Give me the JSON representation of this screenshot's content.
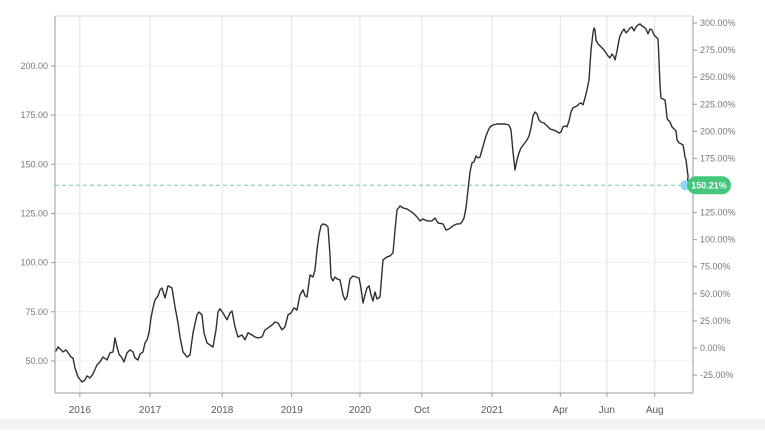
{
  "chart_data": {
    "type": "line",
    "title": "",
    "x_axis": {
      "ticks": [
        {
          "label": "2016",
          "f": 0.039
        },
        {
          "label": "2017",
          "f": 0.149
        },
        {
          "label": "2018",
          "f": 0.262
        },
        {
          "label": "2019",
          "f": 0.371
        },
        {
          "label": "2020",
          "f": 0.478
        },
        {
          "label": "Oct",
          "f": 0.575
        },
        {
          "label": "2021",
          "f": 0.685
        },
        {
          "label": "Apr",
          "f": 0.792
        },
        {
          "label": "Jun",
          "f": 0.865
        },
        {
          "label": "Aug",
          "f": 0.94
        }
      ]
    },
    "y_axis_left": {
      "unit": "price",
      "range": [
        33.7,
        225.4
      ],
      "ticks": [
        {
          "label": "200.00",
          "value": 200
        },
        {
          "label": "175.00",
          "value": 175
        },
        {
          "label": "150.00",
          "value": 150
        },
        {
          "label": "125.00",
          "value": 125
        },
        {
          "label": "100.00",
          "value": 100
        },
        {
          "label": "75.00",
          "value": 75
        },
        {
          "label": "50.00",
          "value": 50
        }
      ]
    },
    "y_axis_right": {
      "unit": "percent",
      "range": [
        -41.6,
        306.5
      ],
      "ticks": [
        {
          "label": "300.00%",
          "value": 300
        },
        {
          "label": "275.00%",
          "value": 275
        },
        {
          "label": "250.00%",
          "value": 250
        },
        {
          "label": "225.00%",
          "value": 225
        },
        {
          "label": "200.00%",
          "value": 200
        },
        {
          "label": "175.00%",
          "value": 175
        },
        {
          "label": "125.00%",
          "value": 125
        },
        {
          "label": "100.00%",
          "value": 100
        },
        {
          "label": "75.00%",
          "value": 75
        },
        {
          "label": "50.00%",
          "value": 50
        },
        {
          "label": "25.00%",
          "value": 25
        },
        {
          "label": "0.00%",
          "value": 0
        },
        {
          "label": "-25.00%",
          "value": -25
        }
      ]
    },
    "current": {
      "label": "150.21%",
      "pct": 150.21,
      "price": 139.3,
      "f": 0.988
    },
    "grid": true,
    "legend": false,
    "colors": {
      "line": "#2f2f2f",
      "grid_h": "#efefef",
      "grid_v": "#e2e2e2",
      "axis": "#9b9b9b",
      "axis_top": "#d8d8d8",
      "tick_label": "#787878",
      "x_tick_label": "#5a5a5a",
      "baseline": "#8ad3bd",
      "badge_bg": "#44c67c",
      "badge_text": "#ffffff",
      "dot": "#8bd8f4",
      "background": "#ffffff",
      "page_band": "#f3f3f3"
    },
    "series": [
      {
        "name": "price",
        "points": [
          [
            0.0016,
            55.1
          ],
          [
            0.0047,
            57.1
          ],
          [
            0.0094,
            55.6
          ],
          [
            0.0125,
            54.6
          ],
          [
            0.0172,
            55.6
          ],
          [
            0.0219,
            53.5
          ],
          [
            0.0251,
            52.0
          ],
          [
            0.0282,
            51.5
          ],
          [
            0.0313,
            46.4
          ],
          [
            0.036,
            41.9
          ],
          [
            0.0423,
            39.3
          ],
          [
            0.047,
            40.3
          ],
          [
            0.0502,
            42.4
          ],
          [
            0.0549,
            41.4
          ],
          [
            0.0596,
            43.4
          ],
          [
            0.0658,
            48.0
          ],
          [
            0.0705,
            49.5
          ],
          [
            0.0752,
            52.0
          ],
          [
            0.0815,
            50.5
          ],
          [
            0.0862,
            54.1
          ],
          [
            0.0909,
            54.6
          ],
          [
            0.094,
            61.7
          ],
          [
            0.0972,
            57.1
          ],
          [
            0.1003,
            53.5
          ],
          [
            0.105,
            51.5
          ],
          [
            0.1082,
            49.5
          ],
          [
            0.1129,
            54.1
          ],
          [
            0.1176,
            55.6
          ],
          [
            0.1223,
            54.6
          ],
          [
            0.1254,
            51.5
          ],
          [
            0.1301,
            50.5
          ],
          [
            0.1332,
            53.5
          ],
          [
            0.1379,
            54.6
          ],
          [
            0.1411,
            59.2
          ],
          [
            0.1442,
            60.7
          ],
          [
            0.1473,
            64.3
          ],
          [
            0.1505,
            71.9
          ],
          [
            0.1536,
            77.0
          ],
          [
            0.1567,
            81.0
          ],
          [
            0.1614,
            83.1
          ],
          [
            0.1646,
            86.1
          ],
          [
            0.1677,
            87.1
          ],
          [
            0.1724,
            82.0
          ],
          [
            0.1771,
            88.2
          ],
          [
            0.1834,
            87.1
          ],
          [
            0.1881,
            77.5
          ],
          [
            0.1928,
            69.3
          ],
          [
            0.1959,
            62.2
          ],
          [
            0.2006,
            54.6
          ],
          [
            0.2069,
            52.0
          ],
          [
            0.2116,
            53.0
          ],
          [
            0.2163,
            64.3
          ],
          [
            0.2226,
            73.4
          ],
          [
            0.2257,
            74.9
          ],
          [
            0.2304,
            73.4
          ],
          [
            0.2335,
            64.3
          ],
          [
            0.2382,
            59.2
          ],
          [
            0.2429,
            58.1
          ],
          [
            0.2476,
            57.1
          ],
          [
            0.2523,
            65.8
          ],
          [
            0.2555,
            74.9
          ],
          [
            0.2586,
            76.5
          ],
          [
            0.2633,
            74.4
          ],
          [
            0.2696,
            70.9
          ],
          [
            0.2743,
            74.4
          ],
          [
            0.2774,
            75.4
          ],
          [
            0.2821,
            67.3
          ],
          [
            0.2868,
            62.2
          ],
          [
            0.2931,
            63.2
          ],
          [
            0.2978,
            60.7
          ],
          [
            0.3025,
            64.3
          ],
          [
            0.3088,
            63.2
          ],
          [
            0.3135,
            62.2
          ],
          [
            0.3182,
            61.7
          ],
          [
            0.3245,
            62.2
          ],
          [
            0.3292,
            65.8
          ],
          [
            0.3339,
            66.8
          ],
          [
            0.3401,
            68.3
          ],
          [
            0.3448,
            69.8
          ],
          [
            0.3495,
            69.3
          ],
          [
            0.3558,
            65.8
          ],
          [
            0.3605,
            67.3
          ],
          [
            0.3652,
            73.4
          ],
          [
            0.3699,
            74.4
          ],
          [
            0.3746,
            77.0
          ],
          [
            0.3793,
            75.9
          ],
          [
            0.384,
            83.6
          ],
          [
            0.3887,
            86.1
          ],
          [
            0.3918,
            83.1
          ],
          [
            0.395,
            82.5
          ],
          [
            0.3997,
            93.7
          ],
          [
            0.4044,
            92.7
          ],
          [
            0.4075,
            96.3
          ],
          [
            0.4107,
            106.4
          ],
          [
            0.4138,
            114.1
          ],
          [
            0.4169,
            118.7
          ],
          [
            0.4201,
            119.7
          ],
          [
            0.4248,
            119.2
          ],
          [
            0.4279,
            118.1
          ],
          [
            0.431,
            103.9
          ],
          [
            0.4326,
            92.7
          ],
          [
            0.4358,
            90.7
          ],
          [
            0.4389,
            92.7
          ],
          [
            0.442,
            91.7
          ],
          [
            0.4467,
            91.2
          ],
          [
            0.4514,
            83.6
          ],
          [
            0.4545,
            81.0
          ],
          [
            0.4577,
            82.5
          ],
          [
            0.4624,
            91.7
          ],
          [
            0.4671,
            93.2
          ],
          [
            0.4718,
            92.7
          ],
          [
            0.4765,
            92.2
          ],
          [
            0.4796,
            87.1
          ],
          [
            0.4828,
            79.5
          ],
          [
            0.4859,
            83.6
          ],
          [
            0.489,
            87.1
          ],
          [
            0.4922,
            88.2
          ],
          [
            0.4953,
            83.6
          ],
          [
            0.4984,
            80.5
          ],
          [
            0.5016,
            85.1
          ],
          [
            0.5047,
            81.5
          ],
          [
            0.5094,
            82.5
          ],
          [
            0.5141,
            101.4
          ],
          [
            0.5204,
            102.9
          ],
          [
            0.5251,
            103.4
          ],
          [
            0.5298,
            104.9
          ],
          [
            0.5329,
            116.6
          ],
          [
            0.5361,
            126.8
          ],
          [
            0.5408,
            128.8
          ],
          [
            0.5455,
            127.8
          ],
          [
            0.5517,
            127.3
          ],
          [
            0.5564,
            126.3
          ],
          [
            0.5611,
            125.3
          ],
          [
            0.5674,
            123.2
          ],
          [
            0.5721,
            121.2
          ],
          [
            0.5768,
            122.2
          ],
          [
            0.5831,
            121.2
          ],
          [
            0.5909,
            121.2
          ],
          [
            0.5956,
            122.7
          ],
          [
            0.6003,
            120.2
          ],
          [
            0.6081,
            119.7
          ],
          [
            0.6128,
            116.6
          ],
          [
            0.6176,
            117.1
          ],
          [
            0.6238,
            118.7
          ],
          [
            0.6301,
            119.7
          ],
          [
            0.6348,
            119.7
          ],
          [
            0.6379,
            120.7
          ],
          [
            0.6411,
            122.7
          ],
          [
            0.6442,
            127.8
          ],
          [
            0.6473,
            136.9
          ],
          [
            0.6505,
            146.1
          ],
          [
            0.6536,
            150.7
          ],
          [
            0.6567,
            151.2
          ],
          [
            0.6599,
            154.2
          ],
          [
            0.663,
            153.2
          ],
          [
            0.6661,
            153.7
          ],
          [
            0.6693,
            157.3
          ],
          [
            0.6724,
            160.9
          ],
          [
            0.6755,
            164.4
          ],
          [
            0.6787,
            167.0
          ],
          [
            0.6818,
            169.0
          ],
          [
            0.6865,
            170.0
          ],
          [
            0.6928,
            170.5
          ],
          [
            0.6991,
            170.5
          ],
          [
            0.7053,
            170.5
          ],
          [
            0.7116,
            170.0
          ],
          [
            0.7147,
            167.5
          ],
          [
            0.7179,
            156.3
          ],
          [
            0.721,
            147.1
          ],
          [
            0.7241,
            152.2
          ],
          [
            0.7273,
            155.8
          ],
          [
            0.7304,
            158.3
          ],
          [
            0.7351,
            160.3
          ],
          [
            0.7398,
            162.4
          ],
          [
            0.7429,
            164.4
          ],
          [
            0.7461,
            168.5
          ],
          [
            0.7492,
            174.6
          ],
          [
            0.7524,
            176.6
          ],
          [
            0.7555,
            175.6
          ],
          [
            0.7586,
            172.5
          ],
          [
            0.7618,
            171.5
          ],
          [
            0.7665,
            171.0
          ],
          [
            0.7712,
            169.5
          ],
          [
            0.7759,
            168.0
          ],
          [
            0.7806,
            167.5
          ],
          [
            0.7853,
            167.0
          ],
          [
            0.79,
            165.9
          ],
          [
            0.7931,
            166.4
          ],
          [
            0.7962,
            169.0
          ],
          [
            0.7994,
            169.5
          ],
          [
            0.8025,
            169.0
          ],
          [
            0.8056,
            172.0
          ],
          [
            0.8088,
            176.6
          ],
          [
            0.8119,
            178.7
          ],
          [
            0.815,
            179.2
          ],
          [
            0.8182,
            179.7
          ],
          [
            0.8213,
            180.7
          ],
          [
            0.8245,
            181.2
          ],
          [
            0.8276,
            180.2
          ],
          [
            0.8307,
            183.7
          ],
          [
            0.8339,
            187.8
          ],
          [
            0.837,
            192.9
          ],
          [
            0.8401,
            208.1
          ],
          [
            0.8433,
            216.8
          ],
          [
            0.8448,
            219.3
          ],
          [
            0.8464,
            218.3
          ],
          [
            0.848,
            213.2
          ],
          [
            0.8511,
            211.2
          ],
          [
            0.8542,
            210.2
          ],
          [
            0.8574,
            209.2
          ],
          [
            0.8605,
            208.1
          ],
          [
            0.8637,
            206.6
          ],
          [
            0.8668,
            205.1
          ],
          [
            0.8699,
            204.1
          ],
          [
            0.873,
            206.1
          ],
          [
            0.8762,
            204.6
          ],
          [
            0.8777,
            203.1
          ],
          [
            0.8809,
            207.6
          ],
          [
            0.884,
            213.2
          ],
          [
            0.8856,
            215.3
          ],
          [
            0.8887,
            217.3
          ],
          [
            0.8918,
            218.8
          ],
          [
            0.895,
            216.8
          ],
          [
            0.8981,
            217.8
          ],
          [
            0.9013,
            219.3
          ],
          [
            0.9044,
            219.8
          ],
          [
            0.9075,
            217.8
          ],
          [
            0.9107,
            219.8
          ],
          [
            0.9138,
            220.8
          ],
          [
            0.9169,
            221.4
          ],
          [
            0.9201,
            220.3
          ],
          [
            0.9232,
            219.8
          ],
          [
            0.9263,
            218.8
          ],
          [
            0.9295,
            216.3
          ],
          [
            0.9326,
            218.8
          ],
          [
            0.9358,
            218.3
          ],
          [
            0.9389,
            215.8
          ],
          [
            0.942,
            214.7
          ],
          [
            0.9452,
            213.7
          ],
          [
            0.9467,
            203.1
          ],
          [
            0.9483,
            190.3
          ],
          [
            0.9498,
            183.7
          ],
          [
            0.953,
            183.2
          ],
          [
            0.9561,
            182.7
          ],
          [
            0.9577,
            178.7
          ],
          [
            0.9592,
            173.6
          ],
          [
            0.9608,
            172.5
          ],
          [
            0.9639,
            171.5
          ],
          [
            0.9671,
            169.0
          ],
          [
            0.9702,
            168.0
          ],
          [
            0.9734,
            167.0
          ],
          [
            0.9749,
            162.4
          ],
          [
            0.9781,
            160.9
          ],
          [
            0.9812,
            160.4
          ],
          [
            0.9843,
            159.8
          ],
          [
            0.9859,
            157.3
          ],
          [
            0.9875,
            153.7
          ],
          [
            0.989,
            152.2
          ],
          [
            0.9906,
            148.1
          ],
          [
            0.9922,
            144.0
          ],
          [
            0.9915,
            141.0
          ],
          [
            0.988,
            139.3
          ]
        ]
      }
    ]
  }
}
